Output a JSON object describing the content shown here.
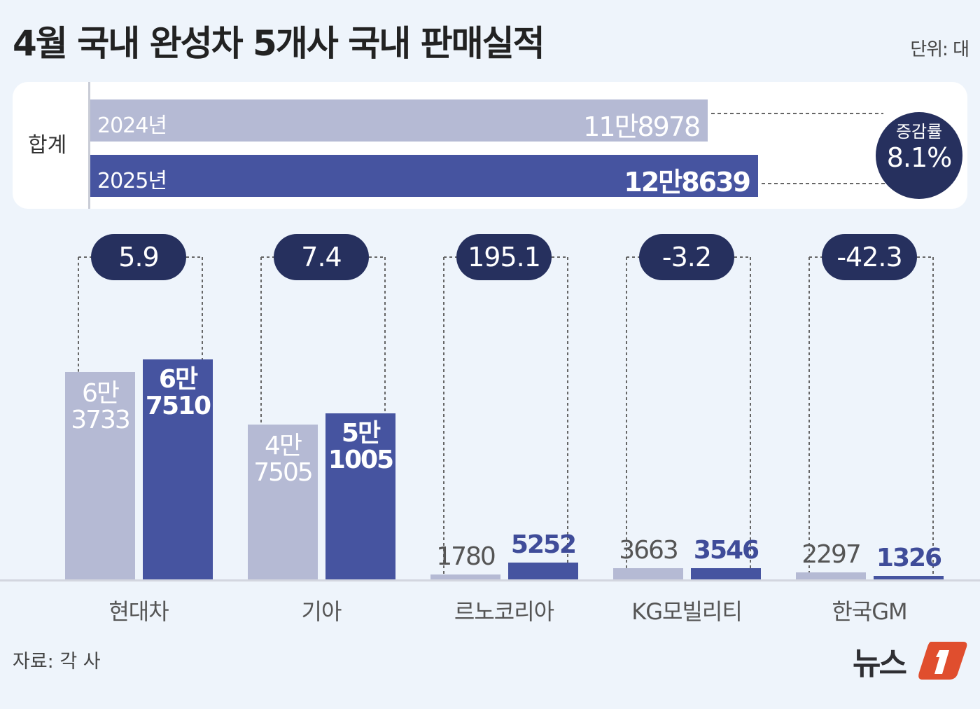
{
  "title": "4월 국내 완성차 5개사 국내 판매실적",
  "unit": "단위: 대",
  "total": {
    "label": "합계",
    "rows": [
      {
        "year": "2024년",
        "value": 118978,
        "value_label": "11만8978",
        "color": "#b5bad4"
      },
      {
        "year": "2025년",
        "value": 128639,
        "value_label": "12만8639",
        "color": "#4654a0"
      }
    ],
    "change_label": "증감률",
    "change_value": "8.1%"
  },
  "chart_data": {
    "type": "bar",
    "categories": [
      "현대차",
      "기아",
      "르노코리아",
      "KG모빌리티",
      "한국GM"
    ],
    "series": [
      {
        "name": "2024년",
        "values": [
          63733,
          47505,
          1780,
          3663,
          2297
        ],
        "labels": [
          [
            "6만",
            "3733"
          ],
          [
            "4만",
            "7505"
          ],
          [
            "1780"
          ],
          [
            "3663"
          ],
          [
            "2297"
          ]
        ],
        "color": "#b5bad4"
      },
      {
        "name": "2025년",
        "values": [
          67510,
          51005,
          5252,
          3546,
          1326
        ],
        "labels": [
          [
            "6만",
            "7510"
          ],
          [
            "5만",
            "1005"
          ],
          [
            "5252"
          ],
          [
            "3546"
          ],
          [
            "1326"
          ]
        ],
        "color": "#4654a0"
      }
    ],
    "change_rates": [
      "5.9",
      "7.4",
      "195.1",
      "-3.2",
      "-42.3"
    ],
    "ylim": [
      0,
      100000
    ],
    "grid": false
  },
  "source": "자료: 각 사",
  "logo": "뉴스1"
}
